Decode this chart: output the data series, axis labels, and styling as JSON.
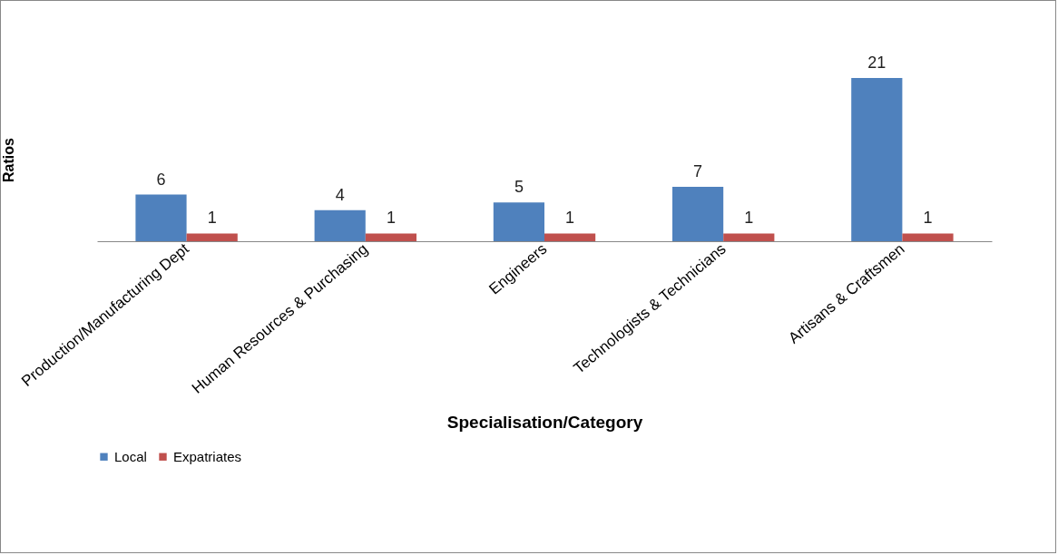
{
  "chart_data": {
    "type": "bar",
    "xlabel": "Specialisation/Category",
    "ylabel": "Ratios",
    "categories": [
      "Production/Manufacturing Dept",
      "Human Resources & Purchasing",
      "Engineers",
      "Technologists & Technicians",
      "Artisans & Craftsmen"
    ],
    "series": [
      {
        "name": "Local",
        "color": "#4f81bd",
        "values": [
          6,
          4,
          5,
          7,
          21
        ]
      },
      {
        "name": "Expatriates",
        "color": "#c0504d",
        "values": [
          1,
          1,
          1,
          1,
          1
        ]
      }
    ],
    "data_labels": true,
    "legend": "bottom",
    "grid": false
  }
}
